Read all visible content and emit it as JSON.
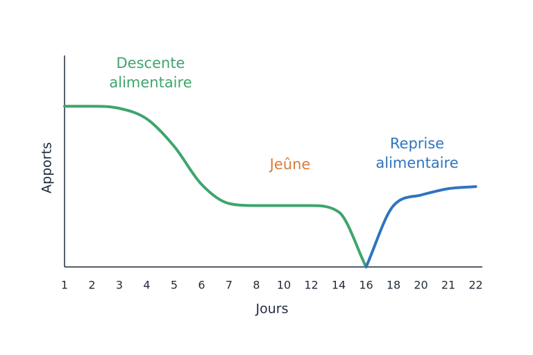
{
  "chart_data": {
    "type": "line",
    "x_label": "Jours",
    "y_label": "Apports",
    "categories": [
      "1",
      "2",
      "3",
      "4",
      "5",
      "6",
      "7",
      "8",
      "10",
      "12",
      "14",
      "16",
      "18",
      "20",
      "21",
      "22"
    ],
    "ylim": [
      0,
      100
    ],
    "series": [
      {
        "color": "#3ea56d",
        "values": [
          76,
          76,
          75,
          70,
          57,
          39,
          30,
          29,
          29,
          29,
          26,
          0,
          null,
          null,
          null,
          null
        ]
      },
      {
        "color": "#2f74c0",
        "values": [
          null,
          null,
          null,
          null,
          null,
          null,
          null,
          null,
          null,
          null,
          null,
          0,
          29,
          34,
          37,
          38
        ]
      }
    ],
    "annotations": [
      {
        "lines": [
          "Descente",
          "alimentaire"
        ],
        "color": "#3ea56d"
      },
      {
        "lines": [
          "Jeûne"
        ],
        "color": "#d47d3c"
      },
      {
        "lines": [
          "Reprise",
          "alimentaire"
        ],
        "color": "#2f74c0"
      }
    ]
  }
}
